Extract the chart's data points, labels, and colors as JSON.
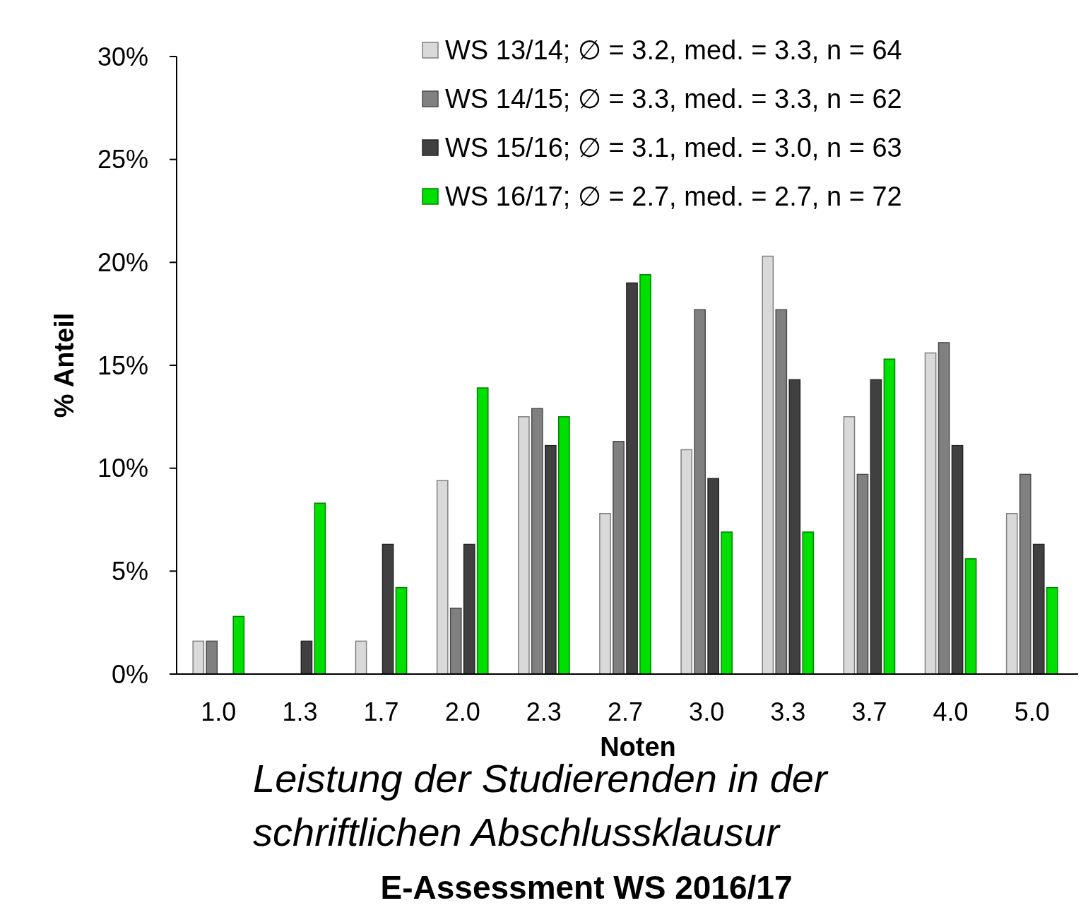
{
  "chart_data": {
    "type": "bar",
    "title": "E-Assessment WS 2016/17",
    "subtitle": "Leistung der Studierenden in der schriftlichen Abschlussklausur",
    "xlabel": "Noten",
    "ylabel": "% Anteil",
    "categories": [
      "1.0",
      "1.3",
      "1.7",
      "2.0",
      "2.3",
      "2.7",
      "3.0",
      "3.3",
      "3.7",
      "4.0",
      "5.0"
    ],
    "series": [
      {
        "name": "WS 13/14; ∅ = 3.2, med. = 3.3, n = 64",
        "color": "#d9d9d9",
        "values": [
          1.6,
          0,
          1.6,
          9.4,
          12.5,
          7.8,
          10.9,
          20.3,
          12.5,
          15.6,
          7.8
        ]
      },
      {
        "name": "WS 14/15; ∅ = 3.3, med. = 3.3, n = 62",
        "color": "#808080",
        "values": [
          1.6,
          0,
          0,
          3.2,
          12.9,
          11.3,
          17.7,
          17.7,
          9.7,
          16.1,
          9.7
        ]
      },
      {
        "name": "WS 15/16; ∅ = 3.1, med. = 3.0, n = 63",
        "color": "#404040",
        "values": [
          0,
          1.6,
          6.3,
          6.3,
          11.1,
          19.0,
          9.5,
          14.3,
          14.3,
          11.1,
          6.3
        ]
      },
      {
        "name": "WS 16/17; ∅ = 2.7, med. = 2.7, n = 72",
        "color": "#00e000",
        "values": [
          2.8,
          8.3,
          4.2,
          13.9,
          12.5,
          19.4,
          6.9,
          6.9,
          15.3,
          5.6,
          4.2
        ]
      }
    ],
    "ylim": [
      0,
      30
    ],
    "yticks": [
      {
        "value": 0,
        "label": "0%"
      },
      {
        "value": 5,
        "label": "5%"
      },
      {
        "value": 10,
        "label": "10%"
      },
      {
        "value": 15,
        "label": "15%"
      },
      {
        "value": 20,
        "label": "20%"
      },
      {
        "value": 25,
        "label": "25%"
      },
      {
        "value": 30,
        "label": "30%"
      }
    ],
    "grid": false,
    "legend": "top right"
  }
}
